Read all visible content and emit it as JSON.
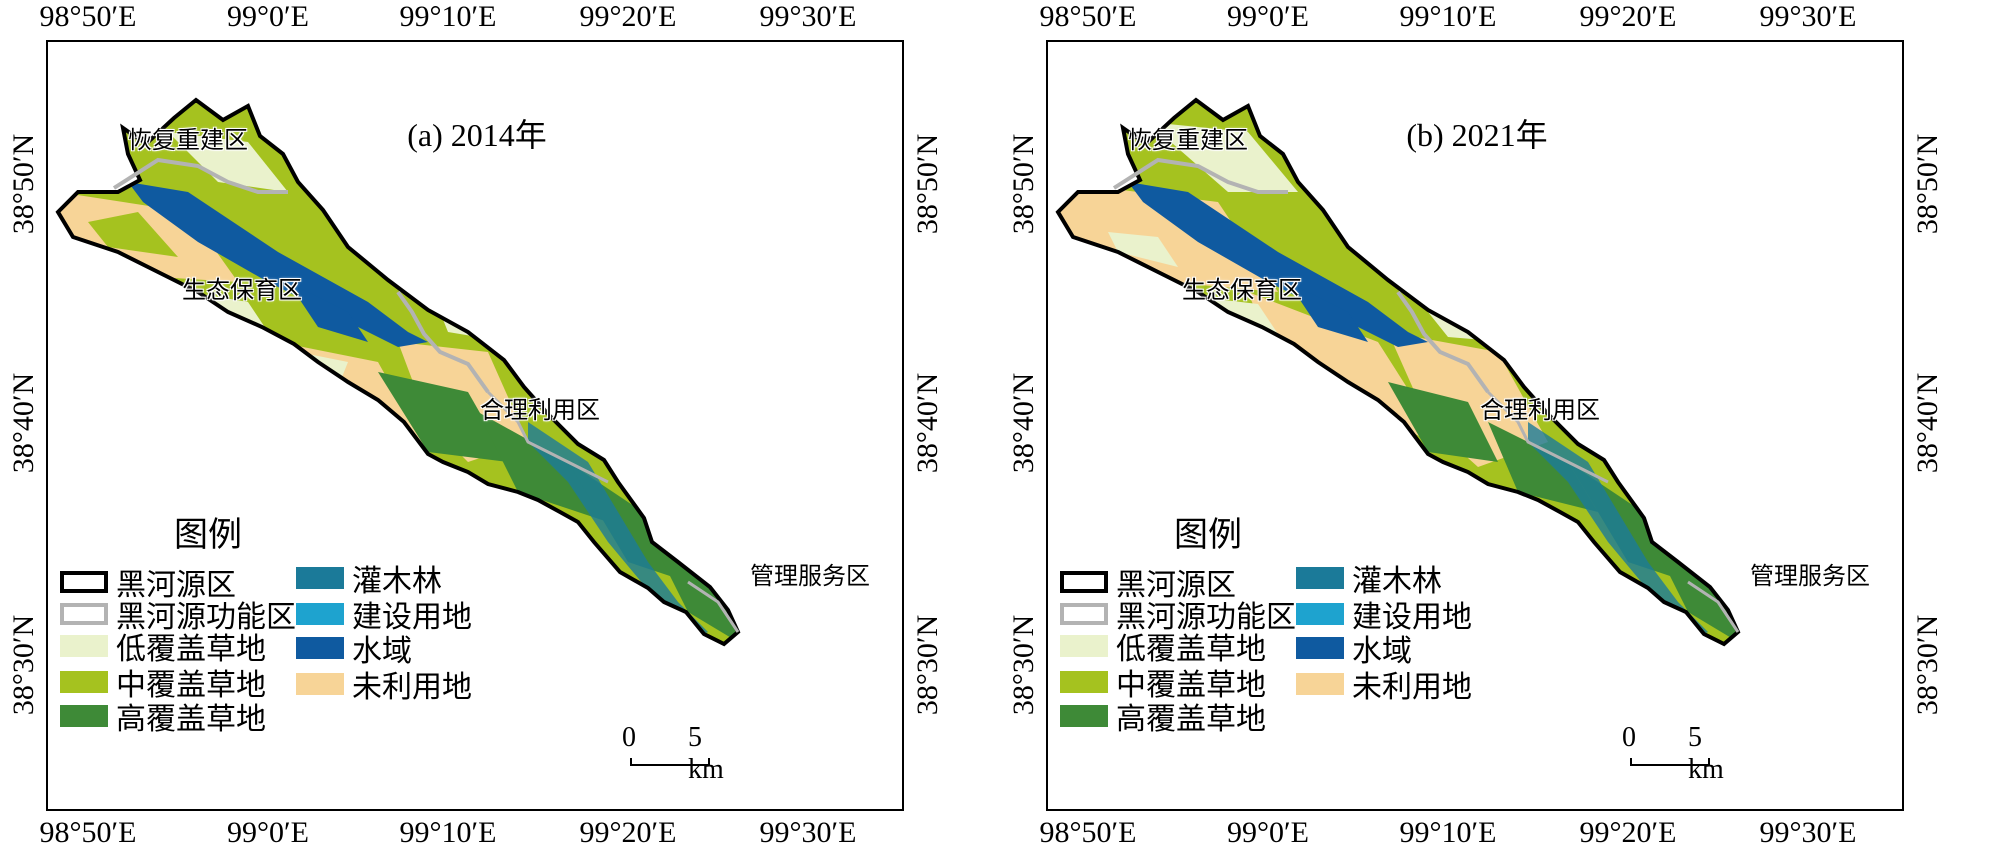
{
  "colors": {
    "boundary": "#000000",
    "functional_zone": "#b3b3b3",
    "low_cover_grass": "#eaf2cc",
    "mid_cover_grass": "#a5c21f",
    "high_cover_grass": "#3e8a37",
    "shrub": "#1b7a99",
    "built_up": "#1ea3cf",
    "water": "#0f5aa0",
    "unused": "#f7d497"
  },
  "axes": {
    "top_ticks": [
      "98°50′E",
      "99°0′E",
      "99°10′E",
      "99°20′E",
      "99°30′E"
    ],
    "bottom_ticks": [
      "98°50′E",
      "99°0′E",
      "99°10′E",
      "99°20′E",
      "99°30′E"
    ],
    "left_ticks": [
      "38°50′N",
      "38°40′N",
      "38°30′N"
    ],
    "right_ticks": [
      "38°50′N",
      "38°40′N",
      "38°30′N"
    ]
  },
  "panels": [
    {
      "title": "(a) 2014年",
      "zones": {
        "restoration": "恢复重建区",
        "ecological": "生态保育区",
        "rational_use": "合理利用区",
        "management": "管理服务区"
      },
      "legend": {
        "title": "图例",
        "items": [
          {
            "label": "黑河源区",
            "icon": "boundary-swatch"
          },
          {
            "label": "黑河源功能区",
            "icon": "zone-line-swatch"
          },
          {
            "label": "低覆盖草地",
            "icon": "low-cover-swatch"
          },
          {
            "label": "中覆盖草地",
            "icon": "mid-cover-swatch"
          },
          {
            "label": "高覆盖草地",
            "icon": "high-cover-swatch"
          },
          {
            "label": "灌木林",
            "icon": "shrub-swatch"
          },
          {
            "label": "建设用地",
            "icon": "built-up-swatch"
          },
          {
            "label": "水域",
            "icon": "water-swatch"
          },
          {
            "label": "未利用地",
            "icon": "unused-swatch"
          }
        ]
      },
      "scale": {
        "zero": "0",
        "value": "5 km"
      }
    },
    {
      "title": "(b) 2021年",
      "zones": {
        "restoration": "恢复重建区",
        "ecological": "生态保育区",
        "rational_use": "合理利用区",
        "management": "管理服务区"
      },
      "legend": {
        "title": "图例",
        "items": [
          {
            "label": "黑河源区",
            "icon": "boundary-swatch"
          },
          {
            "label": "黑河源功能区",
            "icon": "zone-line-swatch"
          },
          {
            "label": "低覆盖草地",
            "icon": "low-cover-swatch"
          },
          {
            "label": "中覆盖草地",
            "icon": "mid-cover-swatch"
          },
          {
            "label": "高覆盖草地",
            "icon": "high-cover-swatch"
          },
          {
            "label": "灌木林",
            "icon": "shrub-swatch"
          },
          {
            "label": "建设用地",
            "icon": "built-up-swatch"
          },
          {
            "label": "水域",
            "icon": "water-swatch"
          },
          {
            "label": "未利用地",
            "icon": "unused-swatch"
          }
        ]
      },
      "scale": {
        "zero": "0",
        "value": "5 km"
      }
    }
  ]
}
